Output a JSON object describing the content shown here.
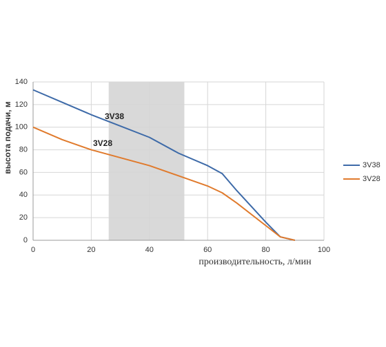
{
  "chart_data": {
    "type": "line",
    "x_label": "производительность, л/мин",
    "y_label": "высота подачи, м",
    "x": [
      0,
      10,
      20,
      30,
      40,
      50,
      60,
      65,
      70,
      80,
      85,
      90
    ],
    "series": [
      {
        "name": "3V38",
        "color": "#3d6aa8",
        "values": [
          133,
          122,
          111,
          101,
          91,
          77,
          66,
          59,
          44,
          16,
          3,
          0
        ]
      },
      {
        "name": "3V28",
        "color": "#e07a2c",
        "values": [
          100,
          89,
          80,
          73,
          66,
          57,
          48,
          42,
          33,
          13,
          3,
          0
        ]
      }
    ],
    "shaded_range": [
      26,
      52
    ],
    "xlim": [
      0,
      100
    ],
    "xticks": [
      0,
      20,
      40,
      60,
      80,
      100
    ],
    "ylim": [
      0,
      140
    ],
    "yticks": [
      0,
      20,
      40,
      60,
      80,
      100,
      120,
      140
    ],
    "grid": true,
    "legend": "right"
  }
}
